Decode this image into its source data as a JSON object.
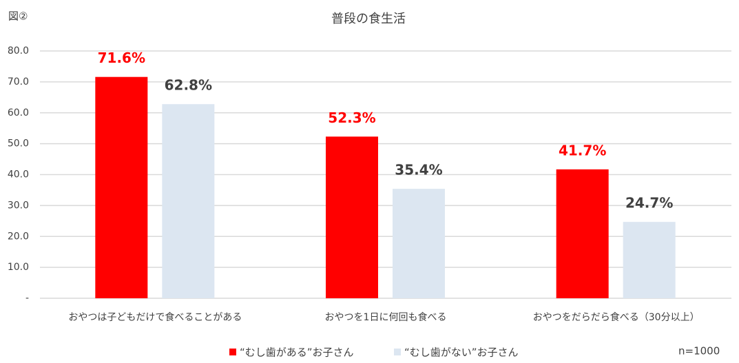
{
  "chart_data": {
    "type": "bar",
    "figure_label": "図②",
    "title": "普段の食生活",
    "note": "n=1000",
    "categories": [
      "おやつは子どもだけで食べることがある",
      "おやつを1日に何回も食べる",
      "おやつをだらだら食べる（30分以上）"
    ],
    "series": [
      {
        "name": "“むし歯がある”お子さん",
        "color": "#ff0000",
        "label_color": "#ff0000",
        "values": [
          71.6,
          52.3,
          41.7
        ],
        "value_labels": [
          "71.6%",
          "52.3%",
          "41.7%"
        ]
      },
      {
        "name": "“むし歯がない”お子さん",
        "color": "#dce6f1",
        "label_color": "#404040",
        "values": [
          62.8,
          35.4,
          24.7
        ],
        "value_labels": [
          "62.8%",
          "35.4%",
          "24.7%"
        ]
      }
    ],
    "ylim": [
      0,
      80
    ],
    "yticks": [
      {
        "value": 0,
        "label": "-"
      },
      {
        "value": 10,
        "label": "10.0"
      },
      {
        "value": 20,
        "label": "20.0"
      },
      {
        "value": 30,
        "label": "30.0"
      },
      {
        "value": 40,
        "label": "40.0"
      },
      {
        "value": 50,
        "label": "50.0"
      },
      {
        "value": 60,
        "label": "60.0"
      },
      {
        "value": 70,
        "label": "70.0"
      },
      {
        "value": 80,
        "label": "80.0"
      }
    ],
    "grid": true
  }
}
